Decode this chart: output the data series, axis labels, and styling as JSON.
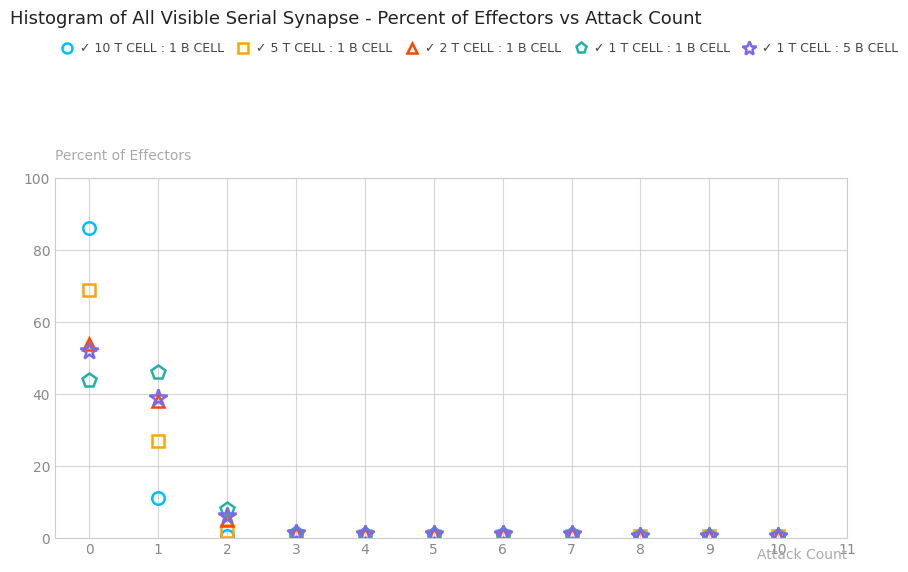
{
  "title": "Histogram of All Visible Serial Synapse - Percent of Effectors vs Attack Count",
  "xlabel": "Attack Count",
  "ylabel": "Percent of Effectors",
  "xlim": [
    -0.5,
    11
  ],
  "ylim": [
    0,
    100
  ],
  "xticks": [
    0,
    1,
    2,
    3,
    4,
    5,
    6,
    7,
    8,
    9,
    10,
    11
  ],
  "yticks": [
    0,
    20,
    40,
    60,
    80,
    100
  ],
  "background_color": "#ffffff",
  "grid_color": "#cccccc",
  "title_color": "#222222",
  "label_color": "#aaaaaa",
  "tick_color": "#888888",
  "series": [
    {
      "label": "10 T CELL : 1 B CELL",
      "color": "#00bfff",
      "marker": "o",
      "markersize": 9,
      "x": [
        0,
        1,
        2,
        3,
        4,
        5,
        6,
        7,
        8,
        9,
        10
      ],
      "y": [
        86.0,
        11.0,
        0.5,
        0.5,
        0.5,
        0.5,
        0.5,
        0.5,
        0.5,
        0.5,
        0.5
      ]
    },
    {
      "label": "5 T CELL : 1 B CELL",
      "color": "#ffa500",
      "marker": "s",
      "markersize": 9,
      "x": [
        0,
        1,
        2,
        3,
        4,
        5,
        6,
        7,
        8,
        9,
        10
      ],
      "y": [
        69.0,
        27.0,
        2.0,
        0.5,
        0.5,
        0.5,
        0.5,
        0.5,
        0.5,
        0.5,
        0.5
      ]
    },
    {
      "label": "2 T CELL : 1 B CELL",
      "color": "#ff4500",
      "marker": "^",
      "markersize": 9,
      "x": [
        0,
        1,
        2,
        3,
        4,
        5,
        6,
        7,
        8,
        9,
        10
      ],
      "y": [
        54.0,
        38.0,
        5.0,
        1.5,
        1.0,
        1.0,
        1.0,
        1.0,
        0.5,
        0.5,
        0.5
      ]
    },
    {
      "label": "1 T CELL : 1 B CELL",
      "color": "#20b2aa",
      "marker": "p",
      "markersize": 10,
      "x": [
        0,
        1,
        2,
        3,
        4,
        5,
        6,
        7,
        8,
        9,
        10
      ],
      "y": [
        44.0,
        46.0,
        8.0,
        1.5,
        1.0,
        1.0,
        1.0,
        1.0,
        0.5,
        0.5,
        0.5
      ]
    },
    {
      "label": "1 T CELL : 5 B CELL",
      "color": "#7b68ee",
      "marker": "*",
      "markersize": 13,
      "x": [
        0,
        1,
        2,
        3,
        4,
        5,
        6,
        7,
        8,
        9,
        10
      ],
      "y": [
        52.0,
        39.0,
        6.0,
        1.5,
        1.0,
        1.0,
        1.0,
        1.0,
        0.5,
        0.5,
        0.5
      ]
    }
  ]
}
